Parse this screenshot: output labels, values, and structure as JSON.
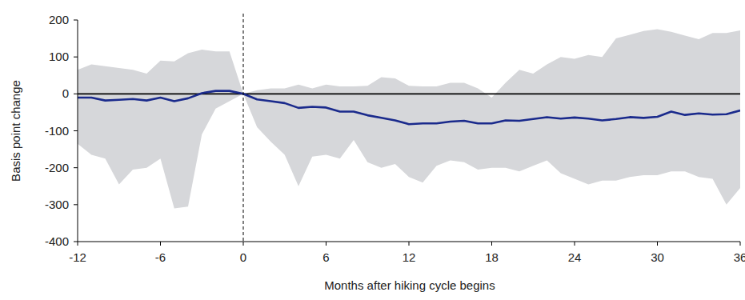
{
  "chart_data": {
    "type": "line",
    "x_label": "Months after hiking cycle begins",
    "y_label": "Basis point change",
    "x": [
      -12,
      -11,
      -10,
      -9,
      -8,
      -7,
      -6,
      -5,
      -4,
      -3,
      -2,
      -1,
      0,
      1,
      2,
      3,
      4,
      5,
      6,
      7,
      8,
      9,
      10,
      11,
      12,
      13,
      14,
      15,
      16,
      17,
      18,
      19,
      20,
      21,
      22,
      23,
      24,
      25,
      26,
      27,
      28,
      29,
      30,
      31,
      32,
      33,
      34,
      35,
      36
    ],
    "series": [
      {
        "type": "band",
        "color": "#d6d7da",
        "upper": [
          65,
          80,
          75,
          70,
          65,
          55,
          90,
          88,
          110,
          120,
          115,
          115,
          0,
          10,
          15,
          15,
          25,
          15,
          25,
          20,
          20,
          22,
          45,
          42,
          22,
          20,
          20,
          30,
          30,
          15,
          -10,
          30,
          65,
          55,
          80,
          100,
          95,
          105,
          100,
          150,
          160,
          170,
          175,
          168,
          158,
          148,
          165,
          165,
          172
        ],
        "lower": [
          -135,
          -165,
          -175,
          -245,
          -205,
          -200,
          -175,
          -310,
          -305,
          -110,
          -40,
          -20,
          0,
          -90,
          -130,
          -165,
          -250,
          -170,
          -165,
          -175,
          -125,
          -185,
          -200,
          -190,
          -225,
          -240,
          -195,
          -180,
          -185,
          -205,
          -200,
          -200,
          -210,
          -195,
          -180,
          -215,
          -230,
          -245,
          -235,
          -235,
          -225,
          -220,
          -220,
          -210,
          -210,
          -225,
          -230,
          -300,
          -255
        ]
      },
      {
        "type": "line",
        "color": "#1a2a8c",
        "values": [
          -10,
          -10,
          -18,
          -16,
          -14,
          -18,
          -10,
          -20,
          -12,
          2,
          8,
          8,
          0,
          -15,
          -20,
          -25,
          -38,
          -35,
          -37,
          -48,
          -48,
          -58,
          -65,
          -72,
          -82,
          -80,
          -80,
          -75,
          -73,
          -80,
          -80,
          -72,
          -73,
          -68,
          -63,
          -67,
          -64,
          -67,
          -72,
          -68,
          -63,
          -65,
          -62,
          -48,
          -57,
          -53,
          -56,
          -55,
          -45
        ]
      }
    ],
    "xlim": [
      -12,
      36
    ],
    "xticks": [
      -12,
      -6,
      0,
      6,
      12,
      18,
      24,
      30,
      36
    ],
    "ylim": [
      -400,
      200
    ],
    "yticks": [
      -400,
      -300,
      -200,
      -100,
      0,
      100,
      200
    ],
    "vline": 0,
    "hline": 0,
    "grid": false
  }
}
